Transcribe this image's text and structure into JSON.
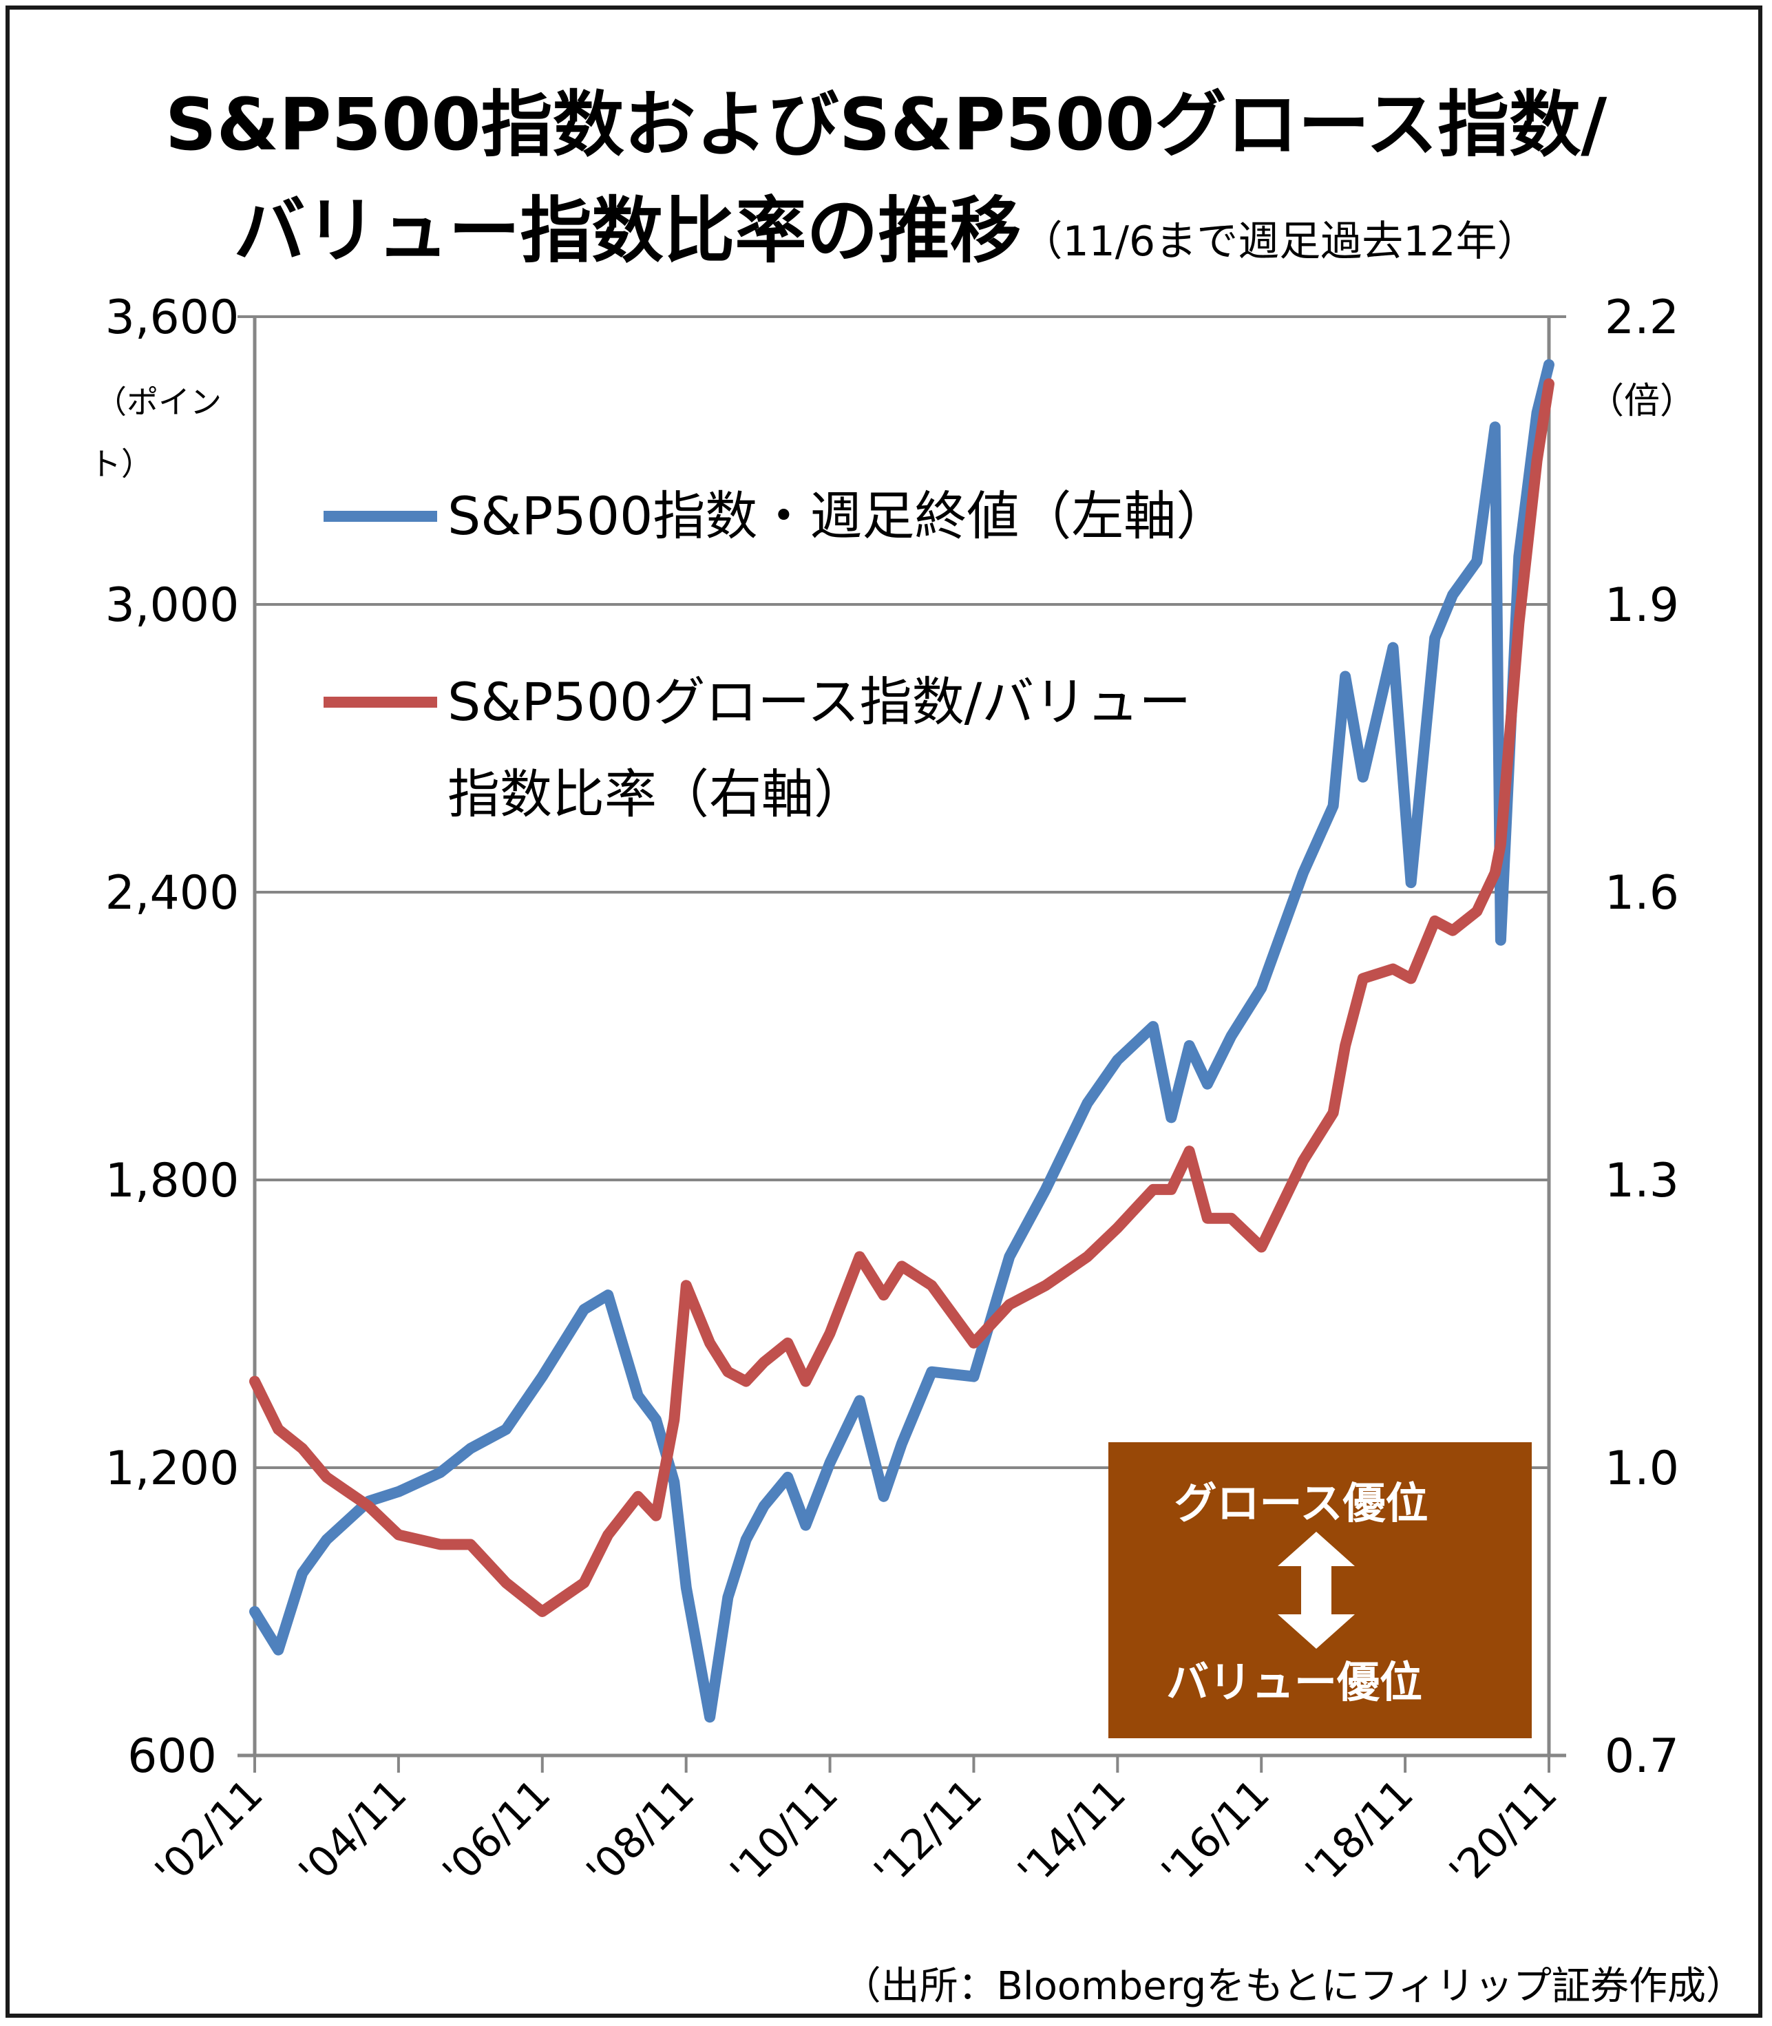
{
  "title_line1": "S&P500指数およびS&P500グロース指数/",
  "title_line2": "バリュー指数比率の推移",
  "title_sub": "（11/6まで週足過去12年）",
  "source": "（出所：Bloombergをもとにフィリップ証券作成）",
  "colors": {
    "blue": "#4f81bd",
    "red": "#c0504d",
    "box": "#984807",
    "grid": "#868686",
    "text": "#000000"
  },
  "chart_data": {
    "type": "line",
    "left_axis": {
      "ticks": [
        "600",
        "1,200",
        "1,800",
        "2,400",
        "3,000",
        "3,600"
      ],
      "range": [
        600,
        3600
      ],
      "unit": "（ポイント）"
    },
    "right_axis": {
      "ticks": [
        "0.7",
        "1.0",
        "1.3",
        "1.6",
        "1.9",
        "2.2"
      ],
      "range": [
        0.7,
        2.2
      ],
      "unit": "（倍）"
    },
    "x_ticks": [
      "'02/11",
      "'04/11",
      "'06/11",
      "'08/11",
      "'10/11",
      "'12/11",
      "'14/11",
      "'16/11",
      "'18/11",
      "'20/11"
    ],
    "grid": true,
    "legend_placement": "upper-left",
    "annotation": {
      "top": "グロース優位",
      "bottom": "バリュー優位",
      "arrow": "up-down-arrow"
    },
    "series": [
      {
        "name": "S&P500指数・週足終値（左軸）",
        "axis": "left",
        "x": [
          "2002-11",
          "2003-03",
          "2003-07",
          "2003-11",
          "2004-06",
          "2004-11",
          "2005-06",
          "2005-11",
          "2006-05",
          "2006-11",
          "2007-06",
          "2007-10",
          "2008-03",
          "2008-06",
          "2008-09",
          "2008-11",
          "2009-03",
          "2009-06",
          "2009-09",
          "2009-12",
          "2010-04",
          "2010-07",
          "2010-11",
          "2011-04",
          "2011-08",
          "2011-11",
          "2012-04",
          "2012-11",
          "2013-05",
          "2013-11",
          "2014-06",
          "2014-11",
          "2015-05",
          "2015-08",
          "2015-11",
          "2016-02",
          "2016-06",
          "2016-11",
          "2017-06",
          "2017-11",
          "2018-01",
          "2018-04",
          "2018-09",
          "2018-12",
          "2019-04",
          "2019-07",
          "2019-11",
          "2020-02",
          "2020-03",
          "2020-06",
          "2020-09",
          "2020-11"
        ],
        "values": [
          900,
          820,
          980,
          1050,
          1130,
          1150,
          1190,
          1240,
          1280,
          1390,
          1530,
          1560,
          1350,
          1300,
          1170,
          950,
          680,
          930,
          1050,
          1120,
          1180,
          1080,
          1210,
          1340,
          1140,
          1250,
          1400,
          1390,
          1640,
          1780,
          1960,
          2050,
          2120,
          1930,
          2080,
          2000,
          2100,
          2200,
          2440,
          2580,
          2850,
          2640,
          2910,
          2420,
          2930,
          3020,
          3090,
          3370,
          2300,
          3100,
          3400,
          3500
        ]
      },
      {
        "name": "S&P500グロース指数/バリュー指数比率（右軸）",
        "axis": "right",
        "x": [
          "2002-11",
          "2003-03",
          "2003-07",
          "2003-11",
          "2004-06",
          "2004-11",
          "2005-06",
          "2005-11",
          "2006-05",
          "2006-11",
          "2007-06",
          "2007-10",
          "2008-03",
          "2008-06",
          "2008-09",
          "2008-11",
          "2009-03",
          "2009-06",
          "2009-09",
          "2009-12",
          "2010-04",
          "2010-07",
          "2010-11",
          "2011-04",
          "2011-08",
          "2011-11",
          "2012-04",
          "2012-11",
          "2013-05",
          "2013-11",
          "2014-06",
          "2014-11",
          "2015-05",
          "2015-08",
          "2015-11",
          "2016-02",
          "2016-06",
          "2016-11",
          "2017-06",
          "2017-11",
          "2018-01",
          "2018-04",
          "2018-09",
          "2018-12",
          "2019-04",
          "2019-07",
          "2019-11",
          "2020-02",
          "2020-03",
          "2020-06",
          "2020-09",
          "2020-11"
        ],
        "values": [
          1.09,
          1.04,
          1.02,
          0.99,
          0.96,
          0.93,
          0.92,
          0.92,
          0.88,
          0.85,
          0.88,
          0.93,
          0.97,
          0.95,
          1.05,
          1.19,
          1.13,
          1.1,
          1.09,
          1.11,
          1.13,
          1.09,
          1.14,
          1.22,
          1.18,
          1.21,
          1.19,
          1.13,
          1.17,
          1.19,
          1.22,
          1.25,
          1.29,
          1.29,
          1.33,
          1.26,
          1.26,
          1.23,
          1.32,
          1.37,
          1.44,
          1.51,
          1.52,
          1.51,
          1.57,
          1.56,
          1.58,
          1.62,
          1.65,
          1.88,
          2.05,
          2.13
        ]
      }
    ]
  }
}
